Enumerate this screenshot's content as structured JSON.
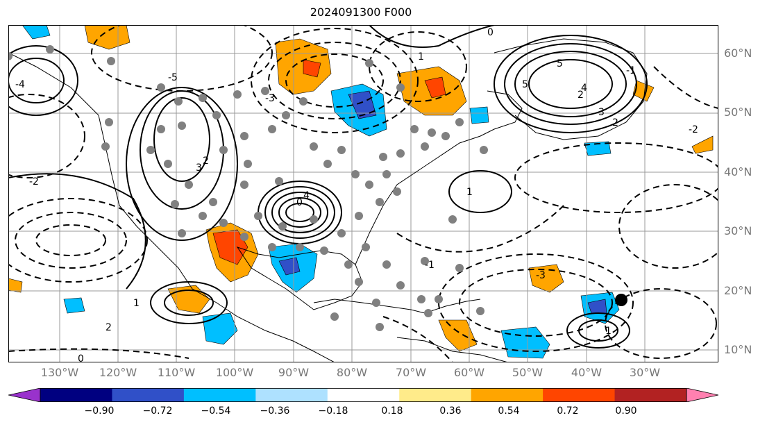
{
  "title": "2024091300 F000",
  "lat_labels": [
    "60°N",
    "50°N",
    "40°N",
    "30°N",
    "20°N",
    "10°N"
  ],
  "lon_labels": [
    "130°W",
    "120°W",
    "110°W",
    "100°W",
    "90°W",
    "80°W",
    "70°W",
    "60°W",
    "50°W",
    "40°W",
    "30°W"
  ],
  "contour_labels": [
    "0",
    "1",
    "2",
    "3",
    "4",
    "5",
    "-1",
    "-2",
    "-3",
    "-4",
    "-5",
    "0",
    "1",
    "2",
    "5",
    "4",
    "3",
    "2",
    "1",
    "0",
    "-1",
    "-2",
    "-3",
    "1",
    "2"
  ],
  "colorbar": {
    "colors": [
      "#9932cc",
      "#000080",
      "#3050c8",
      "#00bfff",
      "#aee1ff",
      "#ffffff",
      "#ffeb8a",
      "#ffa500",
      "#ff4500",
      "#b22222",
      "#ff80b0"
    ],
    "ticks": [
      "−0.90",
      "−0.72",
      "−0.54",
      "−0.36",
      "−0.18",
      "0.18",
      "0.36",
      "0.54",
      "0.72",
      "0.90"
    ]
  },
  "colors": {
    "warm": "#ffa500",
    "hot": "#ff4500",
    "cool": "#00bfff",
    "cold": "#3050c8",
    "marker": "#808080"
  }
}
